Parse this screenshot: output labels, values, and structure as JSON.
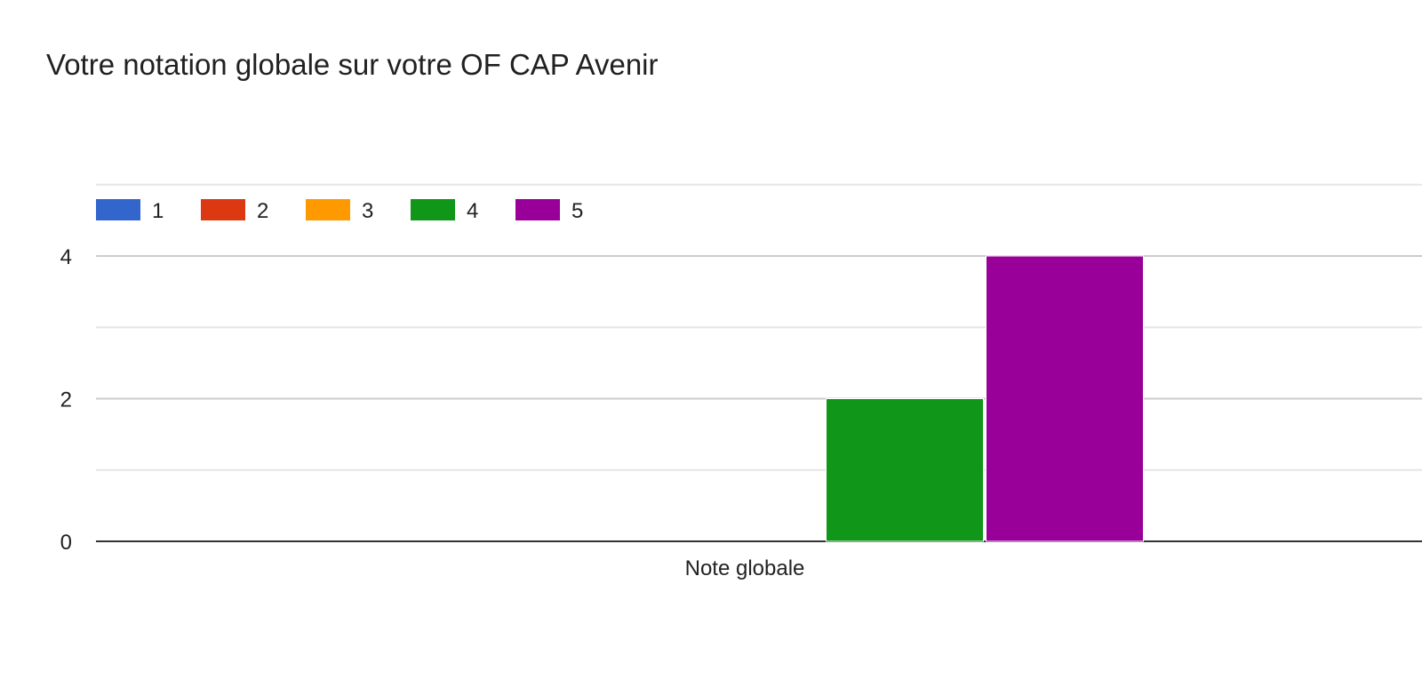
{
  "chart_data": {
    "type": "bar",
    "title": "Votre notation globale sur votre OF CAP Avenir",
    "categories": [
      "Note globale"
    ],
    "series": [
      {
        "name": "1",
        "values": [
          0
        ],
        "color": "#3366cc"
      },
      {
        "name": "2",
        "values": [
          0
        ],
        "color": "#dc3912"
      },
      {
        "name": "3",
        "values": [
          0
        ],
        "color": "#ff9900"
      },
      {
        "name": "4",
        "values": [
          2
        ],
        "color": "#109618"
      },
      {
        "name": "5",
        "values": [
          4
        ],
        "color": "#990099"
      }
    ],
    "ylim": [
      0,
      5
    ],
    "y_ticks": [
      0,
      2,
      4
    ],
    "grid": true,
    "legend_position": "top-left"
  }
}
